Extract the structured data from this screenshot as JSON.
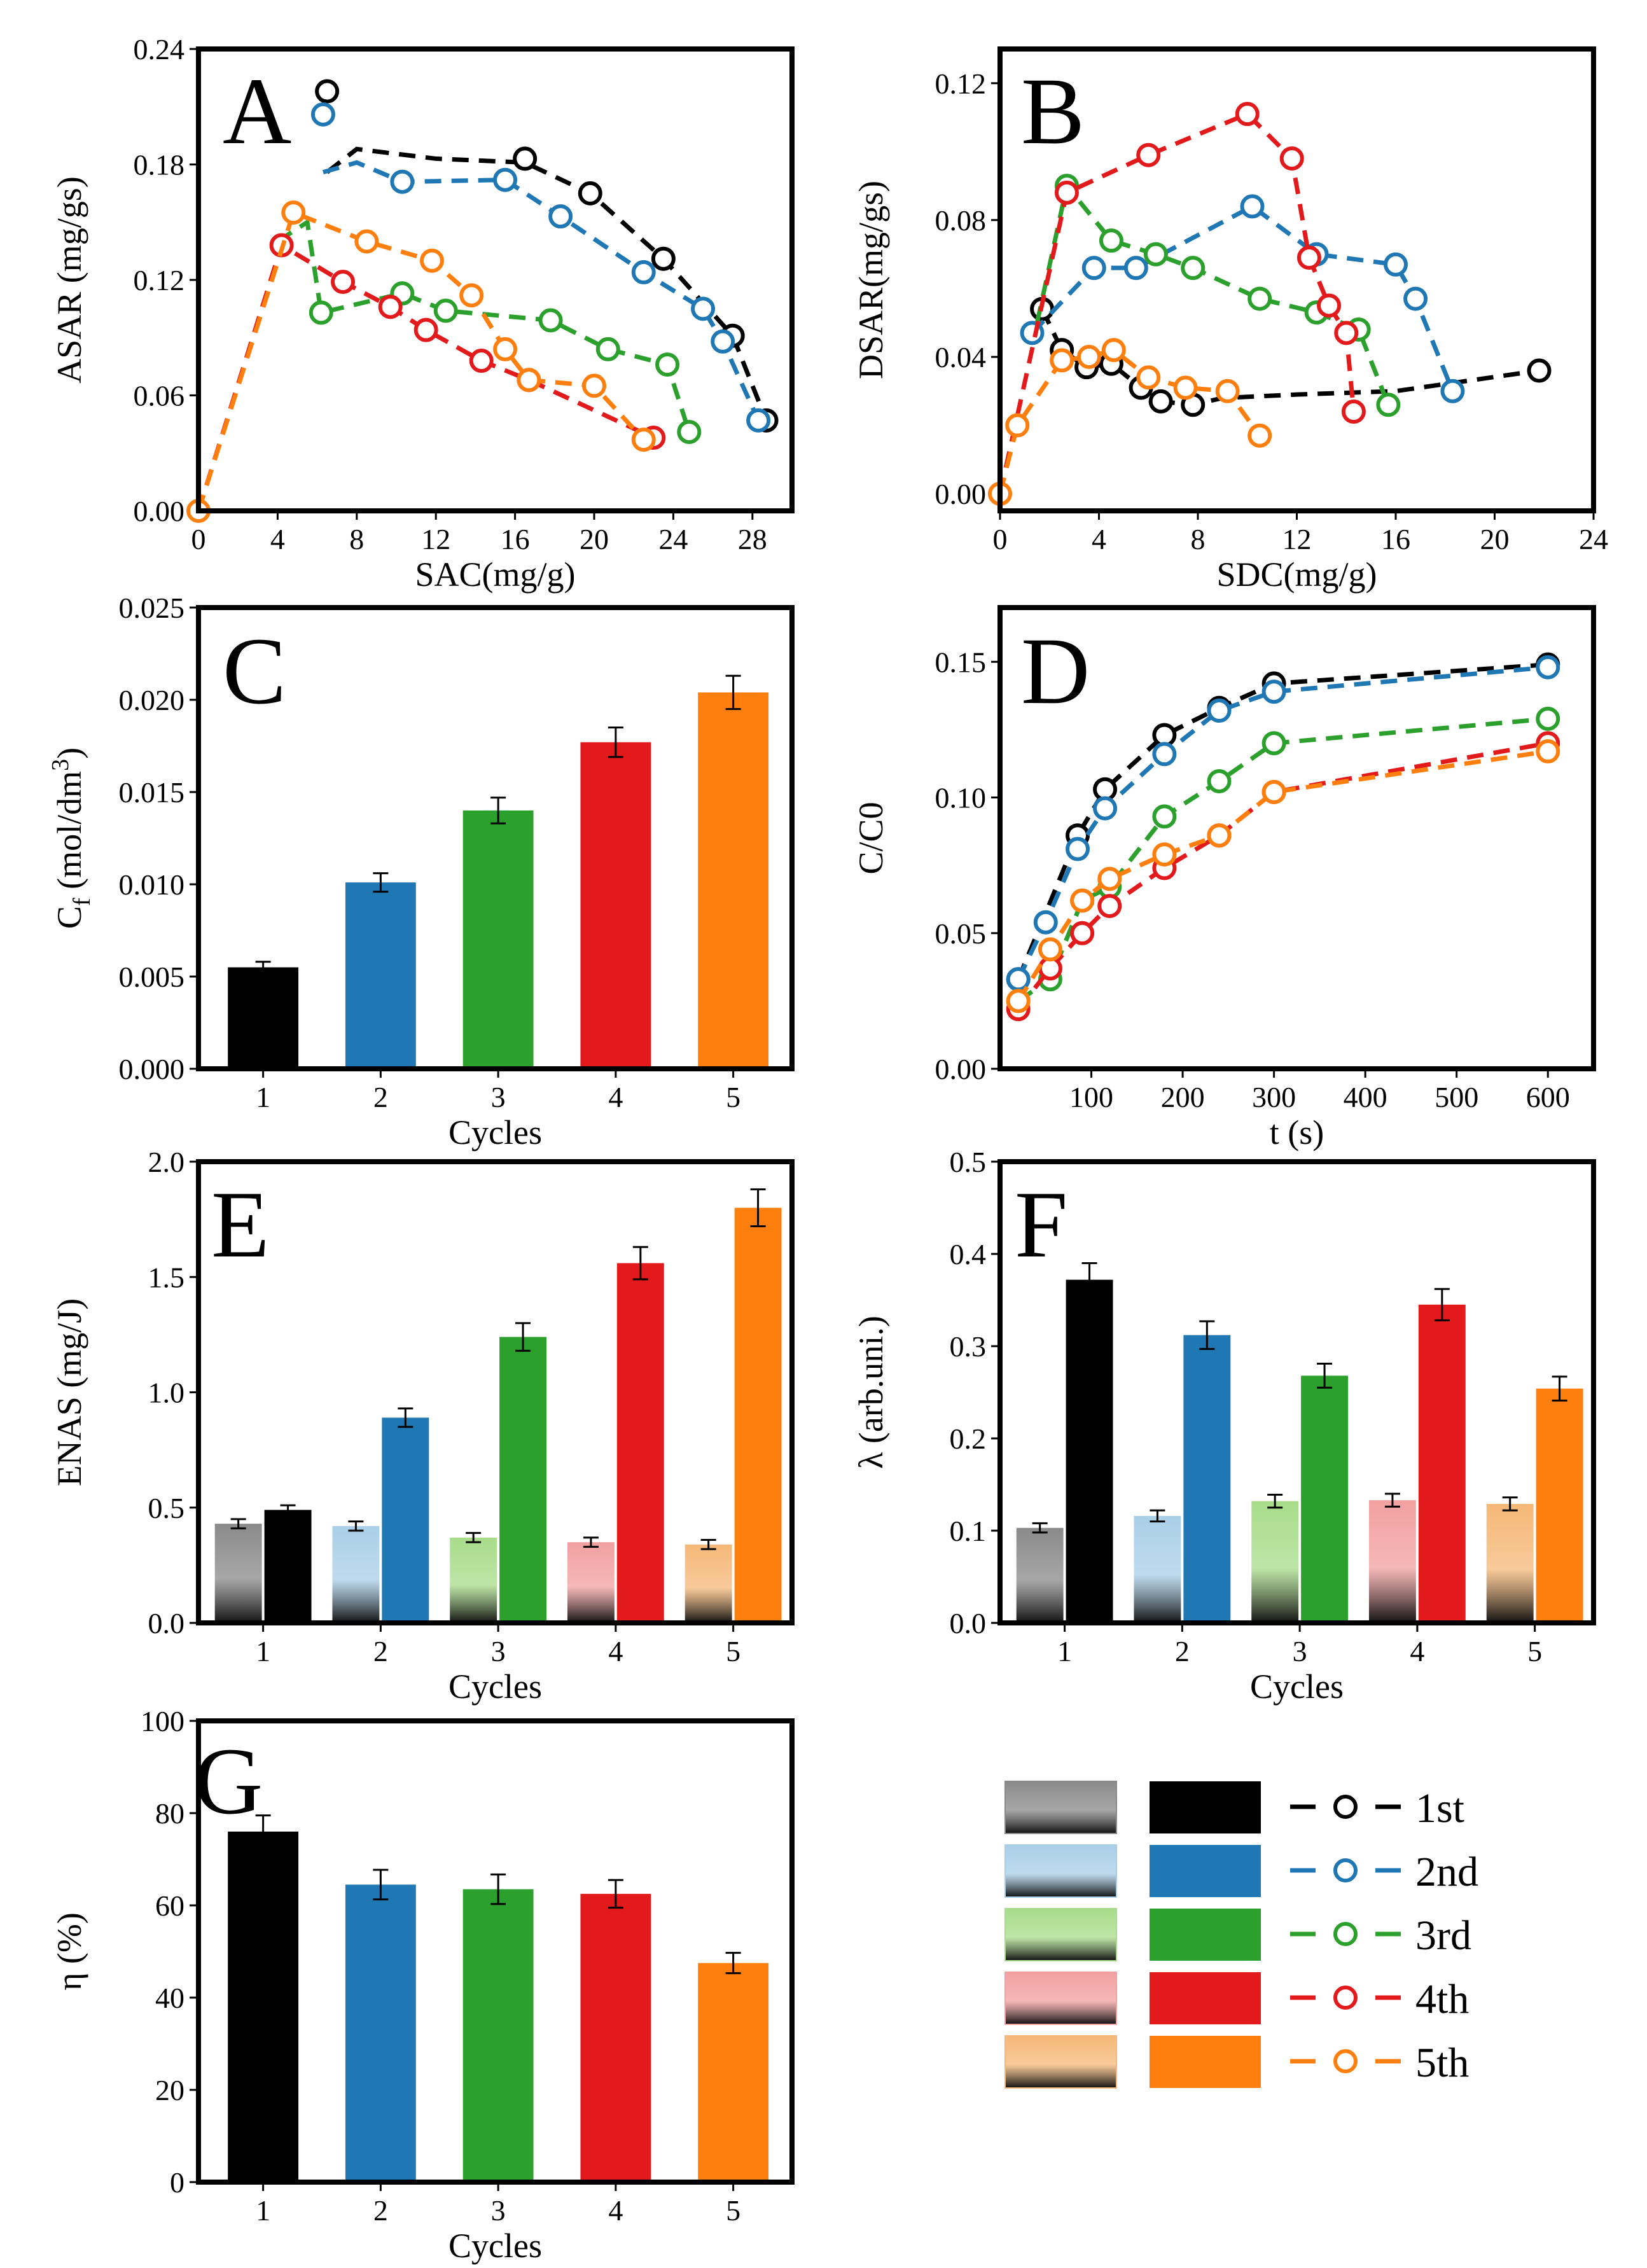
{
  "legend": {
    "labels": [
      "1st",
      "2nd",
      "3rd",
      "4th",
      "5th"
    ],
    "colors": [
      "#000000",
      "#1f77b4",
      "#2ca02c",
      "#e31a1c",
      "#ff7f0e"
    ],
    "light_colors": [
      "#8a8a8a",
      "#a9cfe8",
      "#a8dc8a",
      "#f2a0a0",
      "#f5b878"
    ]
  },
  "chart_data": [
    {
      "id": "A",
      "type": "scatter",
      "letter": "A",
      "xlabel": "SAC(mg/g)",
      "ylabel": "ASAR (mg/gs)",
      "xlim": [
        0,
        30
      ],
      "ylim": [
        0,
        0.24
      ],
      "xticks": [
        0,
        4,
        8,
        12,
        16,
        20,
        24,
        28
      ],
      "xtick_labels": [
        "0",
        "4",
        "8",
        "12",
        "16",
        "20",
        "24",
        "28"
      ],
      "yticks": [
        0,
        0.06,
        0.12,
        0.18,
        0.24
      ],
      "ytick_labels": [
        "0.00",
        "0.06",
        "0.12",
        "0.18",
        "0.24"
      ],
      "series": [
        {
          "name": "1st",
          "x": [
            6.5,
            16.5,
            19.8,
            23.5,
            27,
            28.7
          ],
          "y": [
            0.218,
            0.183,
            0.165,
            0.131,
            0.091,
            0.047
          ],
          "curve_x": [
            6.5,
            8,
            12,
            16.5,
            19.8,
            23.5,
            27,
            28.7
          ],
          "curve_y": [
            0.176,
            0.188,
            0.183,
            0.181,
            0.165,
            0.131,
            0.091,
            0.047
          ]
        },
        {
          "name": "2nd",
          "x": [
            6.3,
            10.3,
            15.5,
            18.3,
            22.5,
            25.5,
            26.5,
            28.3
          ],
          "y": [
            0.206,
            0.171,
            0.172,
            0.153,
            0.124,
            0.105,
            0.088,
            0.047
          ],
          "curve_x": [
            6.3,
            8,
            10.3,
            15.5,
            18.3,
            22.5,
            25.5,
            26.5,
            28.3
          ],
          "curve_y": [
            0.176,
            0.181,
            0.171,
            0.172,
            0.153,
            0.124,
            0.105,
            0.088,
            0.047
          ]
        },
        {
          "name": "3rd",
          "x": [
            6.2,
            10.3,
            12.5,
            17.8,
            20.7,
            23.7,
            24.8
          ],
          "y": [
            0.103,
            0.113,
            0.104,
            0.099,
            0.084,
            0.076,
            0.041
          ],
          "curve_x": [
            4,
            5.5,
            6.2,
            10.3,
            12.5,
            17.8,
            20.7,
            23.7,
            24.8
          ],
          "curve_y": [
            0.14,
            0.15,
            0.103,
            0.113,
            0.104,
            0.099,
            0.084,
            0.076,
            0.041
          ]
        },
        {
          "name": "4th",
          "x": [
            4.2,
            7.3,
            9.7,
            11.5,
            14.3,
            16.7,
            23
          ],
          "y": [
            0.138,
            0.119,
            0.106,
            0.094,
            0.078,
            0.068,
            0.038
          ],
          "curve_x": [
            0,
            4.2,
            7.3,
            9.7,
            11.5,
            14.3,
            16.7,
            23
          ],
          "curve_y": [
            0.0,
            0.138,
            0.119,
            0.106,
            0.094,
            0.078,
            0.068,
            0.038
          ]
        },
        {
          "name": "5th",
          "x": [
            0,
            4.8,
            8.5,
            11.8,
            13.8,
            15.5,
            16.7,
            20,
            22.5
          ],
          "y": [
            0.0,
            0.155,
            0.14,
            0.13,
            0.112,
            0.084,
            0.068,
            0.065,
            0.037
          ],
          "curve_x": [
            0,
            4.8,
            8.5,
            11.8,
            13.8,
            15.5,
            16.7,
            20,
            22.5
          ],
          "curve_y": [
            0.0,
            0.155,
            0.14,
            0.13,
            0.112,
            0.084,
            0.068,
            0.065,
            0.037
          ]
        }
      ]
    },
    {
      "id": "B",
      "type": "scatter",
      "letter": "B",
      "xlabel": "SDC(mg/g)",
      "ylabel": "DSAR(mg/gs)",
      "xlim": [
        0,
        24
      ],
      "ylim": [
        -0.005,
        0.13
      ],
      "xticks": [
        0,
        4,
        8,
        12,
        16,
        20,
        24
      ],
      "xtick_labels": [
        "0",
        "4",
        "8",
        "12",
        "16",
        "20",
        "24"
      ],
      "yticks": [
        0,
        0.04,
        0.08,
        0.12
      ],
      "ytick_labels": [
        "0.00",
        "0.04",
        "0.08",
        "0.12"
      ],
      "series": [
        {
          "name": "1st",
          "x": [
            1.7,
            2.5,
            3.5,
            4.5,
            5.7,
            6.5,
            7.8,
            21.8
          ],
          "y": [
            0.054,
            0.042,
            0.037,
            0.038,
            0.031,
            0.027,
            0.026,
            0.036
          ],
          "curve_x": [
            1.7,
            2.5,
            3.5,
            4.5,
            5.7,
            6.5,
            7.8,
            9,
            12,
            16,
            21.8
          ],
          "curve_y": [
            0.054,
            0.042,
            0.037,
            0.038,
            0.031,
            0.027,
            0.026,
            0.028,
            0.029,
            0.03,
            0.036
          ]
        },
        {
          "name": "2nd",
          "x": [
            1.3,
            3.8,
            5.5,
            10.2,
            12.8,
            16,
            16.8,
            18.3
          ],
          "y": [
            0.047,
            0.066,
            0.066,
            0.084,
            0.07,
            0.067,
            0.057,
            0.03
          ],
          "curve_x": [
            1.3,
            3.8,
            5.5,
            10.2,
            12.8,
            16,
            16.8,
            18.3
          ],
          "curve_y": [
            0.047,
            0.066,
            0.066,
            0.084,
            0.07,
            0.067,
            0.057,
            0.03
          ]
        },
        {
          "name": "3rd",
          "x": [
            2.7,
            4.5,
            6.3,
            7.8,
            10.5,
            12.8,
            14.5,
            15.7
          ],
          "y": [
            0.09,
            0.074,
            0.07,
            0.066,
            0.057,
            0.053,
            0.048,
            0.026
          ],
          "curve_x": [
            1.5,
            2.7,
            4.5,
            6.3,
            7.8,
            10.5,
            12.8,
            14.5,
            15.7
          ],
          "curve_y": [
            0.05,
            0.09,
            0.074,
            0.07,
            0.066,
            0.057,
            0.053,
            0.048,
            0.026
          ]
        },
        {
          "name": "4th",
          "x": [
            2.7,
            6.0,
            10.0,
            11.8,
            12.5,
            13.3,
            14.0,
            14.3
          ],
          "y": [
            0.088,
            0.099,
            0.111,
            0.098,
            0.069,
            0.055,
            0.047,
            0.024
          ],
          "curve_x": [
            0,
            2.7,
            6.0,
            10.0,
            11.8,
            12.5,
            13.3,
            14.0,
            14.3
          ],
          "curve_y": [
            0.0,
            0.088,
            0.099,
            0.111,
            0.098,
            0.069,
            0.055,
            0.047,
            0.024
          ]
        },
        {
          "name": "5th",
          "x": [
            0,
            0.7,
            2.5,
            3.6,
            4.6,
            6.0,
            7.5,
            9.2,
            10.5
          ],
          "y": [
            0.0,
            0.02,
            0.039,
            0.04,
            0.042,
            0.034,
            0.031,
            0.03,
            0.017
          ],
          "curve_x": [
            0,
            0.7,
            2.5,
            3.6,
            4.6,
            6.0,
            7.5,
            9.2,
            10.5
          ],
          "curve_y": [
            0.0,
            0.02,
            0.039,
            0.04,
            0.042,
            0.034,
            0.031,
            0.03,
            0.017
          ]
        }
      ]
    },
    {
      "id": "C",
      "type": "bar",
      "letter": "C",
      "xlabel": "Cycles",
      "ylabel": "C_f (mol/dm^3)",
      "ylabel_parts": {
        "main": "C",
        "sub": "f",
        "rest": " (mol/dm",
        "sup": "3",
        "end": ")"
      },
      "categories": [
        "1",
        "2",
        "3",
        "4",
        "5"
      ],
      "values": [
        0.0055,
        0.0101,
        0.014,
        0.0177,
        0.0204
      ],
      "errors": [
        0.0003,
        0.0005,
        0.0007,
        0.0008,
        0.0009
      ],
      "ylim": [
        0,
        0.025
      ],
      "yticks": [
        0,
        0.005,
        0.01,
        0.015,
        0.02,
        0.025
      ],
      "ytick_labels": [
        "0.000",
        "0.005",
        "0.010",
        "0.015",
        "0.020",
        "0.025"
      ]
    },
    {
      "id": "D",
      "type": "scatter",
      "letter": "D",
      "xlabel": "t (s)",
      "ylabel": "C/C0",
      "xlim": [
        0,
        650
      ],
      "ylim": [
        0,
        0.17
      ],
      "xticks": [
        100,
        200,
        300,
        400,
        500,
        600
      ],
      "xtick_labels": [
        "100",
        "200",
        "300",
        "400",
        "500",
        "600"
      ],
      "yticks": [
        0,
        0.05,
        0.1,
        0.15
      ],
      "ytick_labels": [
        "0.00",
        "0.05",
        "0.10",
        "0.15"
      ],
      "series": [
        {
          "name": "1st",
          "x": [
            20,
            85,
            115,
            180,
            240,
            300,
            600
          ],
          "y": [
            0.033,
            0.086,
            0.103,
            0.123,
            0.133,
            0.142,
            0.149
          ]
        },
        {
          "name": "2nd",
          "x": [
            20,
            50,
            85,
            115,
            180,
            240,
            300,
            600
          ],
          "y": [
            0.033,
            0.054,
            0.081,
            0.096,
            0.116,
            0.132,
            0.139,
            0.148
          ]
        },
        {
          "name": "3rd",
          "x": [
            20,
            55,
            90,
            120,
            180,
            240,
            300,
            600
          ],
          "y": [
            0.025,
            0.033,
            0.062,
            0.067,
            0.093,
            0.106,
            0.12,
            0.129
          ]
        },
        {
          "name": "4th",
          "x": [
            20,
            55,
            90,
            120,
            180,
            240,
            300,
            600
          ],
          "y": [
            0.022,
            0.037,
            0.05,
            0.06,
            0.074,
            0.086,
            0.102,
            0.12
          ]
        },
        {
          "name": "5th",
          "x": [
            20,
            55,
            90,
            120,
            180,
            240,
            300,
            600
          ],
          "y": [
            0.025,
            0.044,
            0.062,
            0.07,
            0.079,
            0.086,
            0.102,
            0.117
          ]
        }
      ]
    },
    {
      "id": "E",
      "type": "bar",
      "letter": "E",
      "xlabel": "Cycles",
      "ylabel": "ENAS (mg/J)",
      "categories": [
        "1",
        "2",
        "3",
        "4",
        "5"
      ],
      "series": [
        {
          "name": "light",
          "values": [
            0.43,
            0.42,
            0.37,
            0.35,
            0.34
          ],
          "errors": [
            0.02,
            0.02,
            0.02,
            0.02,
            0.02
          ]
        },
        {
          "name": "dark",
          "values": [
            0.49,
            0.89,
            1.24,
            1.56,
            1.8
          ],
          "errors": [
            0.02,
            0.04,
            0.06,
            0.07,
            0.08
          ]
        }
      ],
      "ylim": [
        0,
        2.0
      ],
      "yticks": [
        0,
        0.5,
        1.0,
        1.5,
        2.0
      ],
      "ytick_labels": [
        "0.0",
        "0.5",
        "1.0",
        "1.5",
        "2.0"
      ]
    },
    {
      "id": "F",
      "type": "bar",
      "letter": "F",
      "xlabel": "Cycles",
      "ylabel": "λ (arb.uni.)",
      "categories": [
        "1",
        "2",
        "3",
        "4",
        "5"
      ],
      "series": [
        {
          "name": "light",
          "values": [
            0.103,
            0.116,
            0.132,
            0.133,
            0.129
          ],
          "errors": [
            0.005,
            0.006,
            0.007,
            0.007,
            0.007
          ]
        },
        {
          "name": "dark",
          "values": [
            0.372,
            0.312,
            0.268,
            0.345,
            0.254
          ],
          "errors": [
            0.018,
            0.015,
            0.013,
            0.017,
            0.013
          ]
        }
      ],
      "ylim": [
        0,
        0.5
      ],
      "yticks": [
        0,
        0.1,
        0.2,
        0.3,
        0.4,
        0.5
      ],
      "ytick_labels": [
        "0.0",
        "0.1",
        "0.2",
        "0.3",
        "0.4",
        "0.5"
      ]
    },
    {
      "id": "G",
      "type": "bar",
      "letter": "G",
      "xlabel": "Cycles",
      "ylabel": "η (%)",
      "categories": [
        "1",
        "2",
        "3",
        "4",
        "5"
      ],
      "values": [
        76,
        64.5,
        63.5,
        62.5,
        47.5
      ],
      "errors": [
        3.5,
        3.2,
        3.2,
        3.0,
        2.2
      ],
      "ylim": [
        0,
        100
      ],
      "yticks": [
        0,
        20,
        40,
        60,
        80,
        100
      ],
      "ytick_labels": [
        "0",
        "20",
        "40",
        "60",
        "80",
        "100"
      ]
    }
  ]
}
